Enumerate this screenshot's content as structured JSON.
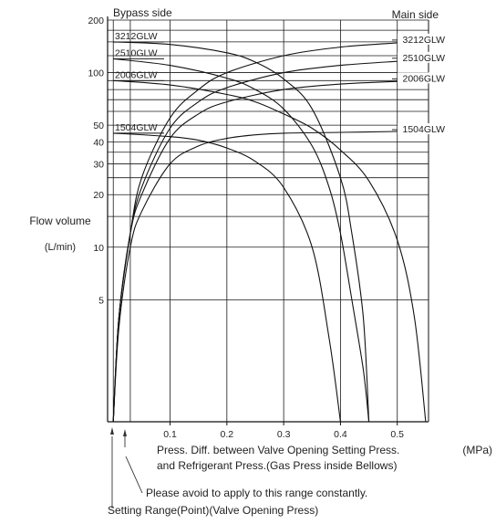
{
  "chart_data": {
    "type": "line",
    "title": "",
    "side_labels": {
      "left": "Bypass side",
      "right": "Main side"
    },
    "ylabel": "Flow volume",
    "yunit": "(L/min)",
    "xlabel_line1": "Press. Diff. between Valve Opening Setting Press.",
    "xunit": "(MPa)",
    "xlabel_line2": "and Refrigerant Press.(Gas Press inside Bellows)",
    "xlim": [
      -0.01,
      0.555
    ],
    "ylim": [
      1,
      200
    ],
    "yscale": "log",
    "grid": true,
    "x_ticks": [
      {
        "value": 0.1,
        "label": "0.1"
      },
      {
        "value": 0.2,
        "label": "0.2"
      },
      {
        "value": 0.3,
        "label": "0.3"
      },
      {
        "value": 0.4,
        "label": "0.4"
      },
      {
        "value": 0.5,
        "label": "0.5"
      }
    ],
    "x_gridlines": [
      0,
      0.03,
      0.1,
      0.2,
      0.3,
      0.4,
      0.5
    ],
    "y_ticks": [
      {
        "value": 200,
        "label": "200"
      },
      {
        "value": 100,
        "label": "100"
      },
      {
        "value": 50,
        "label": "50"
      },
      {
        "value": 40,
        "label": "40"
      },
      {
        "value": 30,
        "label": "30"
      },
      {
        "value": 20,
        "label": "20"
      },
      {
        "value": 10,
        "label": "10"
      },
      {
        "value": 5,
        "label": "5"
      }
    ],
    "y_gridlines": [
      200,
      175,
      150,
      125,
      100,
      90,
      80,
      70,
      60,
      50,
      40,
      35,
      30,
      25,
      20,
      15,
      10,
      5
    ],
    "series": [
      {
        "name": "3212GLW",
        "side": "bypass",
        "x": [
          0,
          0.1,
          0.2,
          0.25,
          0.3,
          0.35,
          0.4,
          0.42,
          0.44,
          0.45
        ],
        "y": [
          150,
          145,
          130,
          115,
          92,
          62,
          25,
          12,
          4,
          1
        ]
      },
      {
        "name": "2510GLW",
        "side": "bypass",
        "x": [
          0,
          0.1,
          0.2,
          0.25,
          0.3,
          0.35,
          0.38,
          0.4,
          0.42,
          0.44,
          0.45
        ],
        "y": [
          120,
          110,
          93,
          80,
          62,
          38,
          22,
          12,
          5,
          2,
          1
        ]
      },
      {
        "name": "2006GLW",
        "side": "bypass",
        "x": [
          0,
          0.1,
          0.2,
          0.25,
          0.3,
          0.35,
          0.4,
          0.45,
          0.5,
          0.53,
          0.55
        ],
        "y": [
          90,
          85,
          75,
          68,
          58,
          48,
          36,
          24,
          11,
          4,
          1
        ]
      },
      {
        "name": "1504GLW",
        "side": "bypass",
        "x": [
          0,
          0.1,
          0.15,
          0.2,
          0.25,
          0.3,
          0.35,
          0.38,
          0.4
        ],
        "y": [
          45,
          43,
          41,
          37,
          31,
          22,
          10,
          3,
          1
        ]
      },
      {
        "name": "3212GLW",
        "side": "main",
        "x": [
          0,
          0.01,
          0.03,
          0.05,
          0.1,
          0.15,
          0.2,
          0.3,
          0.4,
          0.5,
          0.55
        ],
        "y": [
          1,
          4,
          12,
          25,
          55,
          80,
          100,
          125,
          140,
          148,
          150
        ]
      },
      {
        "name": "2510GLW",
        "side": "main",
        "x": [
          0,
          0.01,
          0.03,
          0.05,
          0.1,
          0.15,
          0.2,
          0.3,
          0.4,
          0.5,
          0.55
        ],
        "y": [
          1,
          4,
          12,
          22,
          48,
          68,
          82,
          100,
          110,
          116,
          118
        ]
      },
      {
        "name": "2006GLW",
        "side": "main",
        "x": [
          0,
          0.01,
          0.03,
          0.05,
          0.1,
          0.15,
          0.2,
          0.3,
          0.4,
          0.5,
          0.55
        ],
        "y": [
          1,
          4,
          12,
          20,
          42,
          58,
          68,
          80,
          86,
          89,
          90
        ]
      },
      {
        "name": "1504GLW",
        "side": "main",
        "x": [
          0,
          0.01,
          0.03,
          0.05,
          0.1,
          0.15,
          0.2,
          0.25,
          0.3,
          0.4,
          0.5,
          0.55
        ],
        "y": [
          1,
          3.5,
          10,
          16,
          30,
          38,
          42,
          44,
          45,
          45.5,
          46,
          46
        ]
      }
    ],
    "annotations": {
      "avoid_note": "Please avoid to apply to this range constantly.",
      "setting_range_note": "Setting Range(Point)(Valve Opening Press)"
    }
  }
}
